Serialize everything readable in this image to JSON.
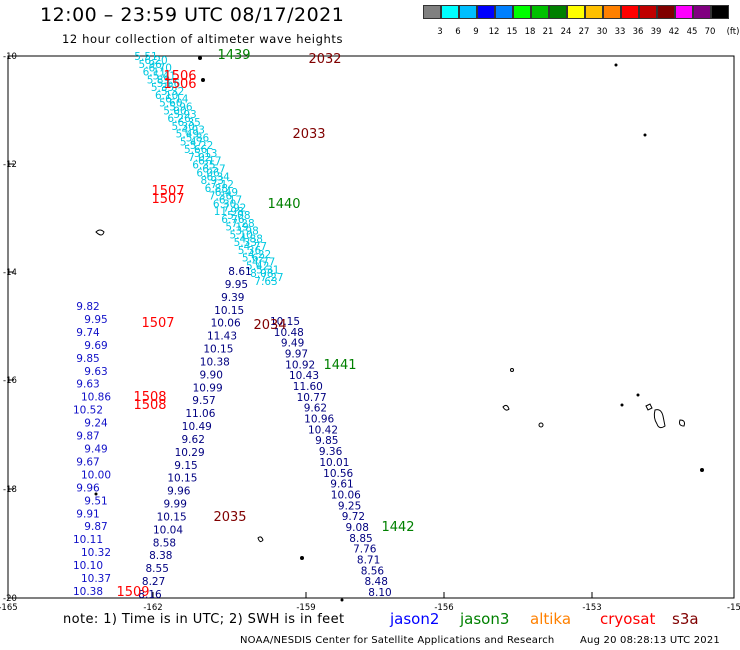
{
  "header": {
    "title": "12:00 – 23:59 UTC 08/17/2021",
    "subtitle": "12 hour collection of altimeter wave heights"
  },
  "colorbar": {
    "unit": "(ft)",
    "colors": [
      "#808080",
      "#00ffff",
      "#00bfff",
      "#0000ff",
      "#0080ff",
      "#00ff00",
      "#00c000",
      "#008000",
      "#ffff00",
      "#ffc000",
      "#ff8000",
      "#ff0000",
      "#c00000",
      "#800000",
      "#ff00ff",
      "#800080",
      "#000000"
    ],
    "labels": [
      "3",
      "6",
      "9",
      "12",
      "15",
      "18",
      "21",
      "24",
      "27",
      "30",
      "33",
      "36",
      "39",
      "42",
      "45",
      "70"
    ]
  },
  "axes": {
    "lat_labels": [
      "-10",
      "-12",
      "-14",
      "-16",
      "-18",
      "-20"
    ],
    "lon_labels": [
      "-165",
      "-162",
      "-159",
      "-156",
      "-153",
      "-15"
    ]
  },
  "tracks": {
    "cyan": {
      "color": "#00c8e0",
      "values": [
        "5.51",
        "6.20",
        "5.96",
        "6.70",
        "6.11",
        "5.41",
        "5.89",
        "5.66",
        "5.35",
        "5.32",
        "6.10",
        "6.14",
        "5.60",
        "5.96",
        "5.00",
        "5.93",
        "6.26",
        "6.35",
        "5.30",
        "4.93",
        "5.49",
        "5.86",
        "5.47",
        "5.22",
        "5.66",
        "5.13",
        "7.02",
        "6.17",
        "6.35",
        "6.57",
        "6.06",
        "6.34",
        "8.93",
        "7.12",
        "6.88",
        "6.49",
        "7.36",
        "6.17",
        "6.30",
        "7.92",
        "11.98",
        "5.08",
        "6.76",
        "7.28",
        "5.19",
        "3.98",
        "5.10",
        "4.88",
        "5.33",
        "4.77",
        "5.36",
        "4.22",
        "5.62",
        "4.77",
        "5.42",
        "5.31",
        "8.08",
        "7.27",
        "7.63"
      ]
    },
    "blue_left": {
      "color": "#1010c8",
      "values": [
        "9.82",
        "9.95",
        "9.74",
        "9.69",
        "9.85",
        "9.63",
        "9.63",
        "10.86",
        "10.52",
        "9.24",
        "9.87",
        "9.49",
        "9.67",
        "10.00",
        "9.96",
        "9.51",
        "9.91",
        "9.87",
        "10.11",
        "10.32",
        "10.10",
        "10.37",
        "10.38"
      ]
    },
    "navy_mid": {
      "color": "#000080",
      "values": [
        "8.61",
        "9.95",
        "9.39",
        "10.15",
        "10.06",
        "11.43",
        "10.15",
        "10.38",
        "9.90",
        "10.99",
        "9.57",
        "11.06",
        "10.49",
        "9.62",
        "10.29",
        "9.15",
        "10.15",
        "9.96",
        "9.99",
        "10.15",
        "10.04",
        "8.58",
        "8.38",
        "8.55",
        "8.27",
        "8.16"
      ]
    },
    "navy_right": {
      "color": "#000080",
      "values": [
        "10.15",
        "10.48",
        "9.49",
        "9.97",
        "10.92",
        "10.43",
        "11.60",
        "10.77",
        "9.62",
        "10.96",
        "10.42",
        "9.85",
        "9.36",
        "10.01",
        "10.56",
        "9.61",
        "10.06",
        "9.25",
        "9.72",
        "9.08",
        "8.85",
        "7.76",
        "8.71",
        "8.56",
        "8.48",
        "8.10"
      ]
    }
  },
  "time_labels": {
    "red": [
      "1506",
      "1506",
      "1507",
      "1507",
      "1507",
      "1508",
      "1508",
      "1509"
    ],
    "darkred": [
      "2032",
      "2033",
      "2034",
      "2035"
    ],
    "green": [
      "1439",
      "1440",
      "1441",
      "1442"
    ]
  },
  "footer": {
    "note": "note:  1) Time is in UTC;  2) SWH is in feet",
    "sources": [
      {
        "name": "jason2",
        "color": "#0000ff"
      },
      {
        "name": "jason3",
        "color": "#008000"
      },
      {
        "name": "altika",
        "color": "#ff8000"
      },
      {
        "name": "cryosat",
        "color": "#ff0000"
      },
      {
        "name": "s3a",
        "color": "#800000"
      }
    ],
    "credit": "NOAA/NESDIS Center for Satellite Applications and Research",
    "stamp": "Aug 20 08:28:13 UTC 2021"
  }
}
